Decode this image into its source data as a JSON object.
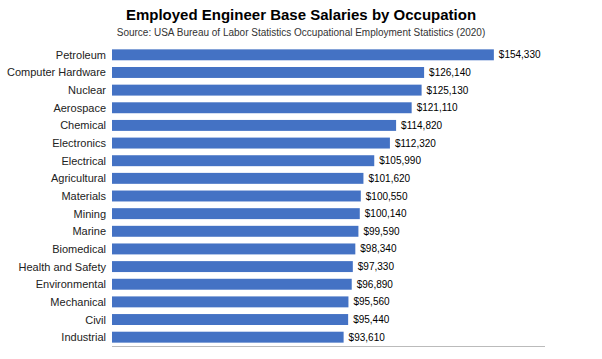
{
  "chart_data": {
    "type": "bar",
    "orientation": "horizontal",
    "title": "Employed Engineer Base Salaries by Occupation",
    "subtitle": "Source: USA Bureau of Labor Statistics Occupational Employment Statistics (2020)",
    "categories": [
      "Industrial",
      "Civil",
      "Mechanical",
      "Environmental",
      "Health and Safety",
      "Biomedical",
      "Marine",
      "Mining",
      "Materials",
      "Agricultural",
      "Electrical",
      "Electronics",
      "Chemical",
      "Aerospace",
      "Nuclear",
      "Computer Hardware",
      "Petroleum"
    ],
    "values": [
      93610,
      95440,
      95560,
      96890,
      97330,
      98340,
      99590,
      100140,
      100550,
      101620,
      105990,
      112320,
      114820,
      121110,
      125130,
      126140,
      154330
    ],
    "value_labels": [
      "$93,610",
      "$95,440",
      "$95,560",
      "$96,890",
      "$97,330",
      "$98,340",
      "$99,590",
      "$100,140",
      "$100,550",
      "$101,620",
      "$105,990",
      "$112,320",
      "$114,820",
      "$121,110",
      "$125,130",
      "$126,140",
      "$154,330"
    ],
    "data_labels": true,
    "color": "#4472c4",
    "xlim": [
      0,
      175000
    ],
    "tick_labels": "y",
    "grid": false
  }
}
